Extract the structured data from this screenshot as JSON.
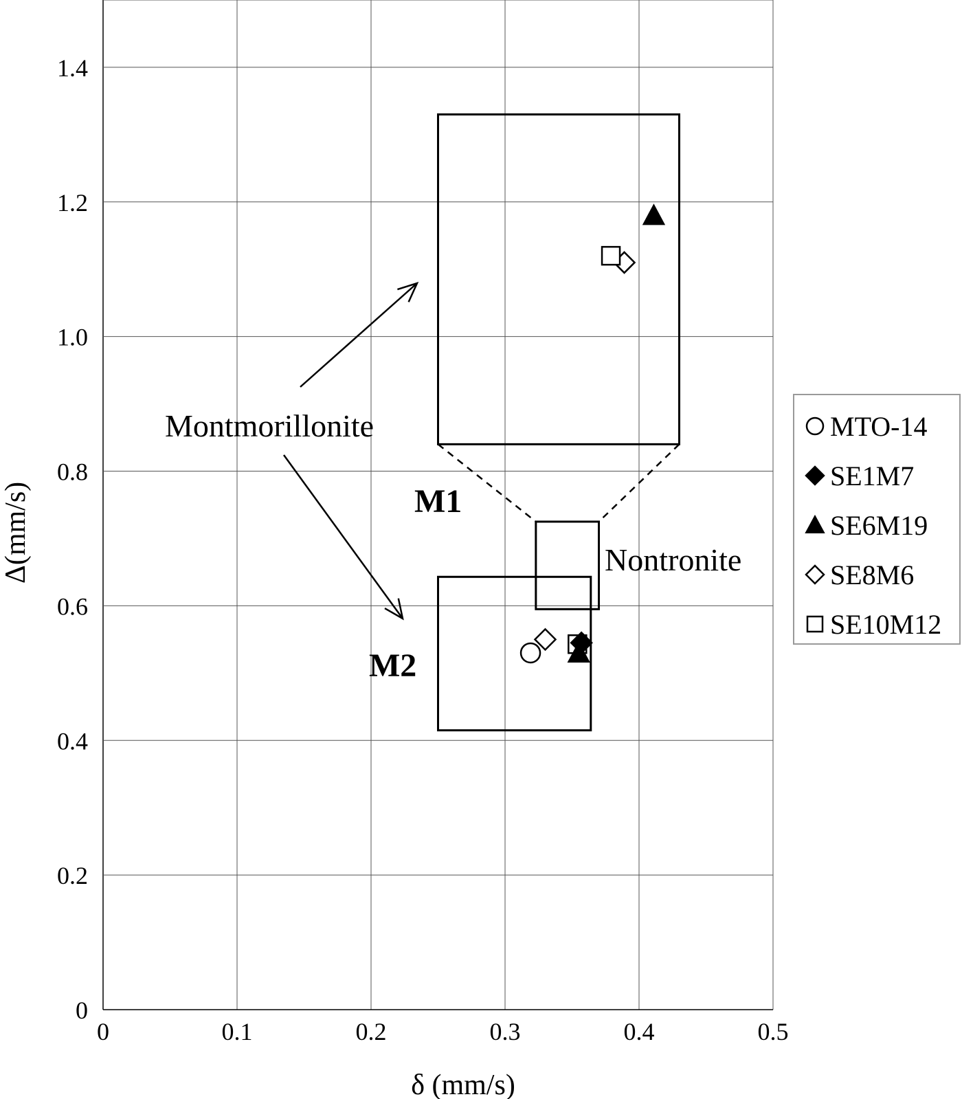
{
  "chart_data": {
    "type": "scatter",
    "title": "",
    "xlabel": "δ (mm/s)",
    "ylabel": "Δ(mm/s)",
    "xlim": [
      0,
      0.5
    ],
    "ylim": [
      0,
      1.5
    ],
    "xticks": [
      0,
      0.1,
      0.2,
      0.3,
      0.4,
      0.5
    ],
    "xtick_labels": [
      "0",
      "0.1",
      "0.2",
      "0.3",
      "0.4",
      "0.5"
    ],
    "yticks": [
      0,
      0.2,
      0.4,
      0.6,
      0.8,
      1.0,
      1.2,
      1.4
    ],
    "ytick_labels": [
      "0",
      "0.2",
      "0.4",
      "0.6",
      "0.8",
      "1.0",
      "1.2",
      "1.4"
    ],
    "grid": true,
    "legend_position": "right",
    "series": [
      {
        "name": "MTO-14",
        "marker": "circle-open",
        "points": [
          [
            0.319,
            0.53
          ]
        ]
      },
      {
        "name": "SE1M7",
        "marker": "diamond-filled",
        "points": [
          [
            0.357,
            0.545
          ]
        ]
      },
      {
        "name": "SE6M19",
        "marker": "triangle-filled",
        "points": [
          [
            0.355,
            0.53
          ],
          [
            0.411,
            1.18
          ]
        ]
      },
      {
        "name": "SE8M6",
        "marker": "diamond-open",
        "points": [
          [
            0.33,
            0.55
          ],
          [
            0.389,
            1.11
          ]
        ]
      },
      {
        "name": "SE10M12",
        "marker": "square-open",
        "points": [
          [
            0.354,
            0.543
          ],
          [
            0.379,
            1.12
          ]
        ]
      }
    ],
    "regions": [
      {
        "label": "M1",
        "x0": 0.25,
        "x1": 0.43,
        "y0": 0.84,
        "y1": 1.33
      },
      {
        "label": "M2",
        "x0": 0.25,
        "x1": 0.364,
        "y0": 0.415,
        "y1": 0.643
      },
      {
        "label": "Nontronite",
        "x0": 0.323,
        "x1": 0.37,
        "y0": 0.595,
        "y1": 0.725
      }
    ],
    "annotations": [
      "Montmorillonite",
      "M1",
      "M2",
      "Nontronite"
    ]
  }
}
